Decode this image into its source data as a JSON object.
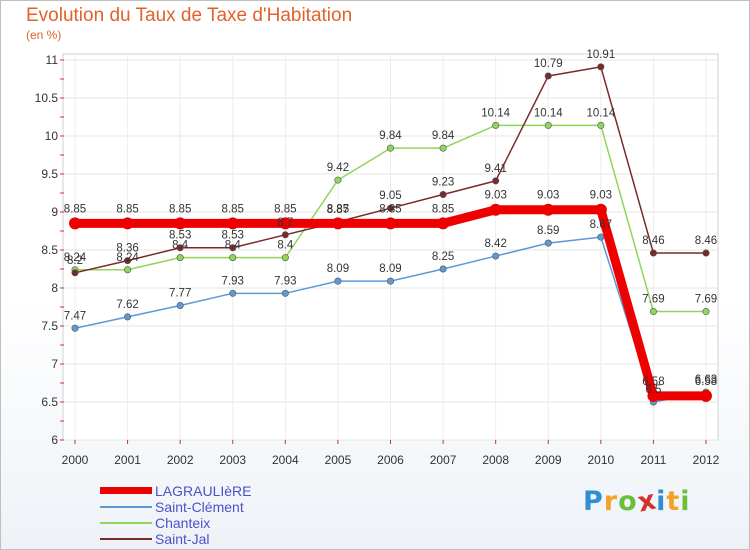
{
  "chart_data": {
    "type": "line",
    "title": "Evolution du Taux de Taxe d'Habitation",
    "subtitle": "(en %)",
    "x": [
      "2000",
      "2001",
      "2002",
      "2003",
      "2004",
      "2005",
      "2006",
      "2007",
      "2008",
      "2009",
      "2010",
      "2011",
      "2012"
    ],
    "ylim": [
      6,
      11
    ],
    "yticks": [
      "6",
      "6.5",
      "7",
      "7.5",
      "8",
      "8.5",
      "9",
      "9.5",
      "10",
      "10.5",
      "11"
    ],
    "grid": true,
    "legend_position": "bottom-left",
    "series": [
      {
        "name": "LAGRAULIèRE",
        "color": "#ee0000",
        "values": [
          8.85,
          8.85,
          8.85,
          8.85,
          8.85,
          8.85,
          8.85,
          8.85,
          9.03,
          9.03,
          9.03,
          6.58,
          6.58
        ],
        "labels": [
          "8.85",
          "8.85",
          "8.85",
          "8.85",
          "8.85",
          "8.85",
          "8.85",
          "8.85",
          "9.03",
          "9.03",
          "9.03",
          "6.58",
          "6.58"
        ]
      },
      {
        "name": "Saint-Clément",
        "color": "#5c9ad6",
        "values": [
          7.47,
          7.62,
          7.77,
          7.93,
          7.93,
          8.09,
          8.09,
          8.25,
          8.42,
          8.59,
          8.67,
          6.5,
          6.63
        ],
        "labels": [
          "7.47",
          "7.62",
          "7.77",
          "7.93",
          "7.93",
          "8.09",
          "8.09",
          "8.25",
          "8.42",
          "8.59",
          "8.67",
          "6.5",
          "6.63"
        ]
      },
      {
        "name": "Chanteix",
        "color": "#8fd65a",
        "values": [
          8.24,
          8.24,
          8.4,
          8.4,
          8.4,
          9.42,
          9.84,
          9.84,
          10.14,
          10.14,
          10.14,
          7.69,
          7.69
        ],
        "labels": [
          "8.24",
          "8.24",
          "8.4",
          "8.4",
          "8.4",
          "9.42",
          "9.84",
          "9.84",
          "10.14",
          "10.14",
          "10.14",
          "7.69",
          "7.69"
        ]
      },
      {
        "name": "Saint-Jal",
        "color": "#7a2a2a",
        "values": [
          8.2,
          8.36,
          8.53,
          8.53,
          8.7,
          8.87,
          9.05,
          9.23,
          9.41,
          10.79,
          10.91,
          8.46,
          8.46
        ],
        "labels": [
          "8.2",
          "8.36",
          "8.53",
          "8.53",
          "8.7",
          "8.87",
          "9.05",
          "9.23",
          "9.41",
          "10.79",
          "10.91",
          "8.46",
          "8.46"
        ]
      }
    ]
  },
  "logo": {
    "letters": [
      "P",
      "r",
      "o",
      "x",
      "i",
      "t",
      "i"
    ],
    "colors": [
      "#2f8fd1",
      "#f3a32a",
      "#6cbf3c",
      "#d3312e",
      "#2f8fd1",
      "#f3a32a",
      "#6cbf3c"
    ]
  }
}
